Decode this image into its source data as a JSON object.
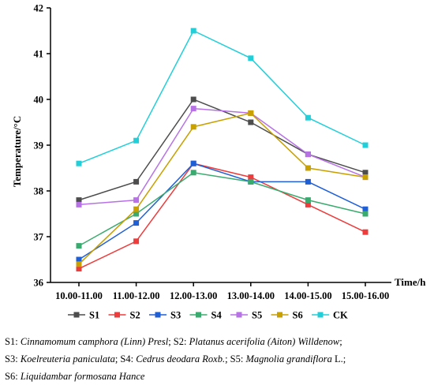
{
  "chart_data": {
    "type": "line",
    "xlabel": "Time/h",
    "ylabel": "Temperature/°C",
    "ylim": [
      36,
      42
    ],
    "yticks": [
      36,
      37,
      38,
      39,
      40,
      41,
      42
    ],
    "categories": [
      "10.00-11.00",
      "11.00-12.00",
      "12.00-13.00",
      "13.00-14.00",
      "14.00-15.00",
      "15.00-16.00"
    ],
    "grid": false,
    "legend_position": "bottom",
    "series": [
      {
        "name": "S1",
        "color": "#4d4d4d",
        "values": [
          37.8,
          38.2,
          40.0,
          39.5,
          38.8,
          38.4
        ]
      },
      {
        "name": "S2",
        "color": "#ee3b3b",
        "values": [
          36.3,
          36.9,
          38.6,
          38.3,
          37.7,
          37.1
        ]
      },
      {
        "name": "S3",
        "color": "#1f5fd6",
        "values": [
          36.5,
          37.3,
          38.6,
          38.2,
          38.2,
          37.6
        ]
      },
      {
        "name": "S4",
        "color": "#3aab6e",
        "values": [
          36.8,
          37.5,
          38.4,
          38.2,
          37.8,
          37.5
        ]
      },
      {
        "name": "S5",
        "color": "#b772e6",
        "values": [
          37.7,
          37.8,
          39.8,
          39.7,
          38.8,
          38.3
        ]
      },
      {
        "name": "S6",
        "color": "#c8a000",
        "values": [
          36.4,
          37.6,
          39.4,
          39.7,
          38.5,
          38.3
        ]
      },
      {
        "name": "CK",
        "color": "#22cfd9",
        "values": [
          38.6,
          39.1,
          41.5,
          40.9,
          39.6,
          39.0
        ]
      }
    ]
  },
  "caption": {
    "lines": [
      [
        {
          "t": "S1: ",
          "i": false
        },
        {
          "t": "Cinnamomum camphora (Linn) Presl",
          "i": true
        },
        {
          "t": "; S2: ",
          "i": false
        },
        {
          "t": "Platanus acerifolia (Aiton) Willdenow",
          "i": true
        },
        {
          "t": ";",
          "i": false
        }
      ],
      [
        {
          "t": "S3: ",
          "i": false
        },
        {
          "t": "Koelreuteria paniculata",
          "i": true
        },
        {
          "t": "; S4: ",
          "i": false
        },
        {
          "t": "Cedrus deodara Roxb.",
          "i": true
        },
        {
          "t": "; S5: ",
          "i": false
        },
        {
          "t": "Magnolia grandiflora",
          "i": true
        },
        {
          "t": " L.;",
          "i": false
        }
      ],
      [
        {
          "t": "S6: ",
          "i": false
        },
        {
          "t": "Liquidambar formosana Hance",
          "i": true
        }
      ]
    ]
  }
}
